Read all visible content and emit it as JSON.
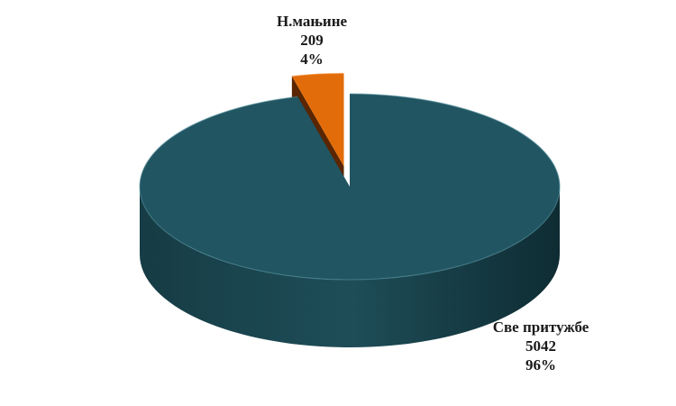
{
  "chart_data": {
    "type": "pie",
    "style": "3d-exploded",
    "slices": [
      {
        "label": "Све притужбе",
        "value": 5042,
        "percent": "96%",
        "color": "#215562"
      },
      {
        "label": "Н.мањине",
        "value": 209,
        "percent": "4%",
        "color": "#e36c0a"
      }
    ],
    "legend": "none"
  }
}
